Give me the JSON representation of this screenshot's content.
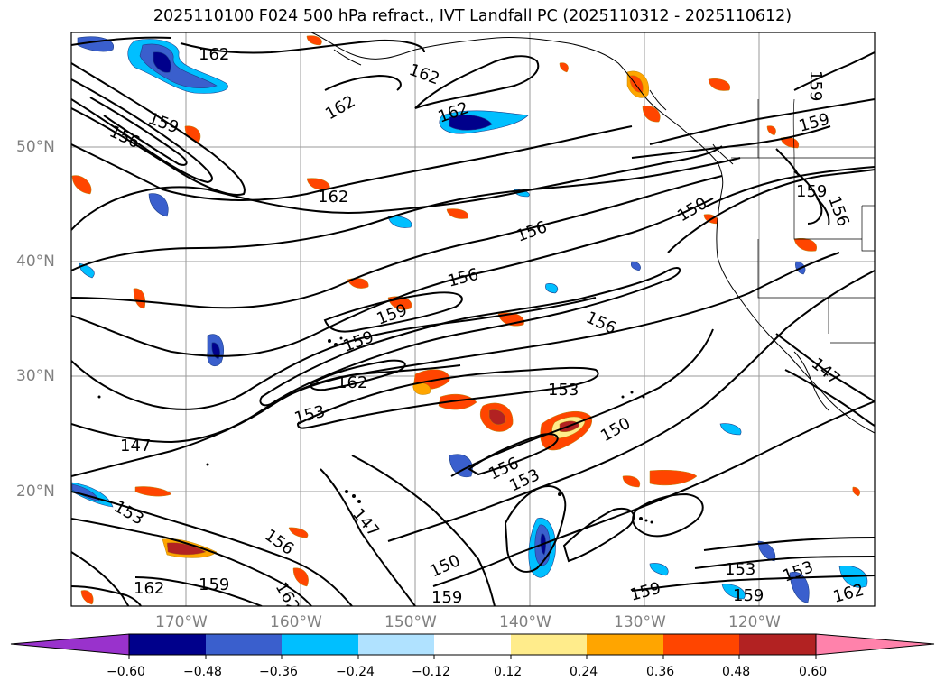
{
  "title": "2025110100 F024 500 hPa refract., IVT Landfall PC (2025110312 - 2025110612)",
  "lat_labels": [
    "50°N",
    "40°N",
    "30°N",
    "20°N"
  ],
  "lon_labels": [
    "170°W",
    "160°W",
    "150°W",
    "140°W",
    "130°W",
    "120°W"
  ],
  "contour_labels": [
    "162",
    "162",
    "162",
    "162",
    "162",
    "162",
    "159",
    "159",
    "159",
    "159",
    "159",
    "159",
    "159",
    "159",
    "159",
    "156",
    "156",
    "156",
    "156",
    "156",
    "156",
    "156",
    "153",
    "153",
    "153",
    "153",
    "153",
    "150",
    "150",
    "150",
    "147",
    "147",
    "147",
    "162",
    "162",
    "153",
    "159",
    "162"
  ],
  "colorbar": {
    "ticks": [
      "−0.60",
      "−0.48",
      "−0.36",
      "−0.24",
      "−0.12",
      "0.12",
      "0.24",
      "0.36",
      "0.48",
      "0.60"
    ],
    "colors": [
      "#9932cc",
      "#00008b",
      "#3a5fcd",
      "#00bfff",
      "#b0e2ff",
      "#ffffff",
      "#ffec8b",
      "#ffa500",
      "#ff4500",
      "#b22222",
      "#ff82ab"
    ]
  },
  "map": {
    "projection": "PlateCarree",
    "lon_range": [
      "180°W",
      "110°W"
    ],
    "lat_range": [
      "10°N",
      "60°N"
    ],
    "gridlines": true,
    "contour_color": "#000000",
    "fill_variable": "IVT Landfall PC",
    "contour_variable": "500 hPa refractivity"
  }
}
